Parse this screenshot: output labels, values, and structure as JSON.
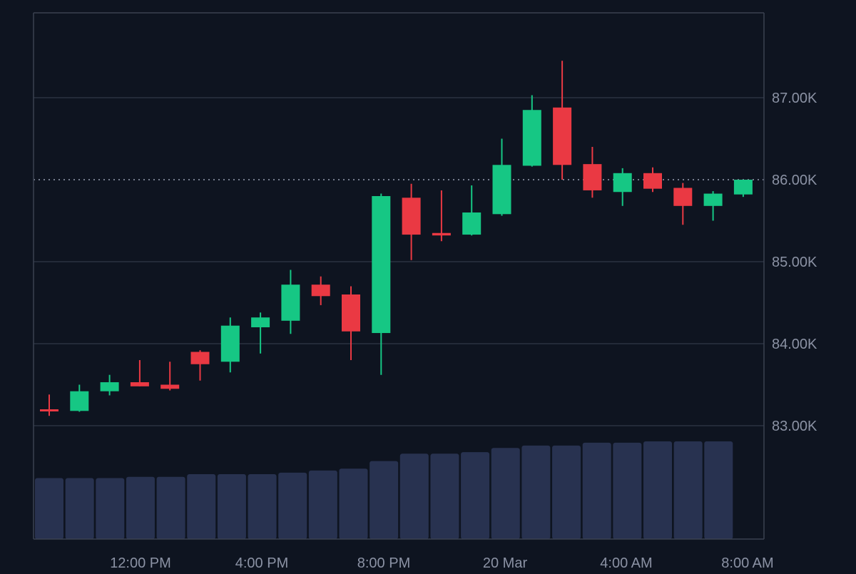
{
  "chart_data": {
    "type": "candlestick",
    "colors": {
      "background": "#0e1420",
      "up": "#16c784",
      "down": "#ea3943",
      "volume": "#283250",
      "grid": "#2a3140",
      "axis": "#3a4150",
      "tick_text": "#8b92a4",
      "last_price_line": "#9aa2b4"
    },
    "y_axis": {
      "position": "right",
      "range": [
        82700,
        87900
      ],
      "ticks": [
        83000,
        84000,
        85000,
        86000,
        87000
      ],
      "tick_labels": [
        "83.00K",
        "84.00K",
        "85.00K",
        "86.00K",
        "87.00K"
      ]
    },
    "x_axis": {
      "tick_labels": [
        "12:00 PM",
        "4:00 PM",
        "8:00 PM",
        "20 Mar",
        "4:00 AM",
        "8:00 AM"
      ]
    },
    "grid": true,
    "last_price": 86000,
    "candles": [
      {
        "open": 83200,
        "high": 83380,
        "low": 83120,
        "close": 83180
      },
      {
        "open": 83180,
        "high": 83500,
        "low": 83170,
        "close": 83420
      },
      {
        "open": 83420,
        "high": 83620,
        "low": 83370,
        "close": 83530
      },
      {
        "open": 83530,
        "high": 83800,
        "low": 83480,
        "close": 83480
      },
      {
        "open": 83500,
        "high": 83780,
        "low": 83430,
        "close": 83450
      },
      {
        "open": 83900,
        "high": 83920,
        "low": 83550,
        "close": 83750
      },
      {
        "open": 83780,
        "high": 84320,
        "low": 83650,
        "close": 84220
      },
      {
        "open": 84200,
        "high": 84380,
        "low": 83880,
        "close": 84320
      },
      {
        "open": 84280,
        "high": 84900,
        "low": 84120,
        "close": 84720
      },
      {
        "open": 84720,
        "high": 84820,
        "low": 84470,
        "close": 84580
      },
      {
        "open": 84600,
        "high": 84700,
        "low": 83800,
        "close": 84150
      },
      {
        "open": 84130,
        "high": 85830,
        "low": 83620,
        "close": 85800
      },
      {
        "open": 85780,
        "high": 85950,
        "low": 85020,
        "close": 85330
      },
      {
        "open": 85350,
        "high": 85870,
        "low": 85250,
        "close": 85320
      },
      {
        "open": 85330,
        "high": 85930,
        "low": 85320,
        "close": 85600
      },
      {
        "open": 85580,
        "high": 86500,
        "low": 85560,
        "close": 86180
      },
      {
        "open": 86170,
        "high": 87030,
        "low": 86160,
        "close": 86850
      },
      {
        "open": 86880,
        "high": 87450,
        "low": 86000,
        "close": 86180
      },
      {
        "open": 86190,
        "high": 86400,
        "low": 85780,
        "close": 85870
      },
      {
        "open": 85850,
        "high": 86140,
        "low": 85680,
        "close": 86080
      },
      {
        "open": 86080,
        "high": 86150,
        "low": 85850,
        "close": 85890
      },
      {
        "open": 85900,
        "high": 85960,
        "low": 85450,
        "close": 85680
      },
      {
        "open": 85680,
        "high": 85860,
        "low": 85500,
        "close": 85830
      },
      {
        "open": 85820,
        "high": 86000,
        "low": 85790,
        "close": 86000
      }
    ],
    "volume": [
      0.232,
      0.232,
      0.232,
      0.237,
      0.237,
      0.247,
      0.247,
      0.247,
      0.253,
      0.261,
      0.268,
      0.297,
      0.325,
      0.325,
      0.331,
      0.347,
      0.356,
      0.356,
      0.367,
      0.367,
      0.372,
      0.372,
      0.372
    ]
  }
}
